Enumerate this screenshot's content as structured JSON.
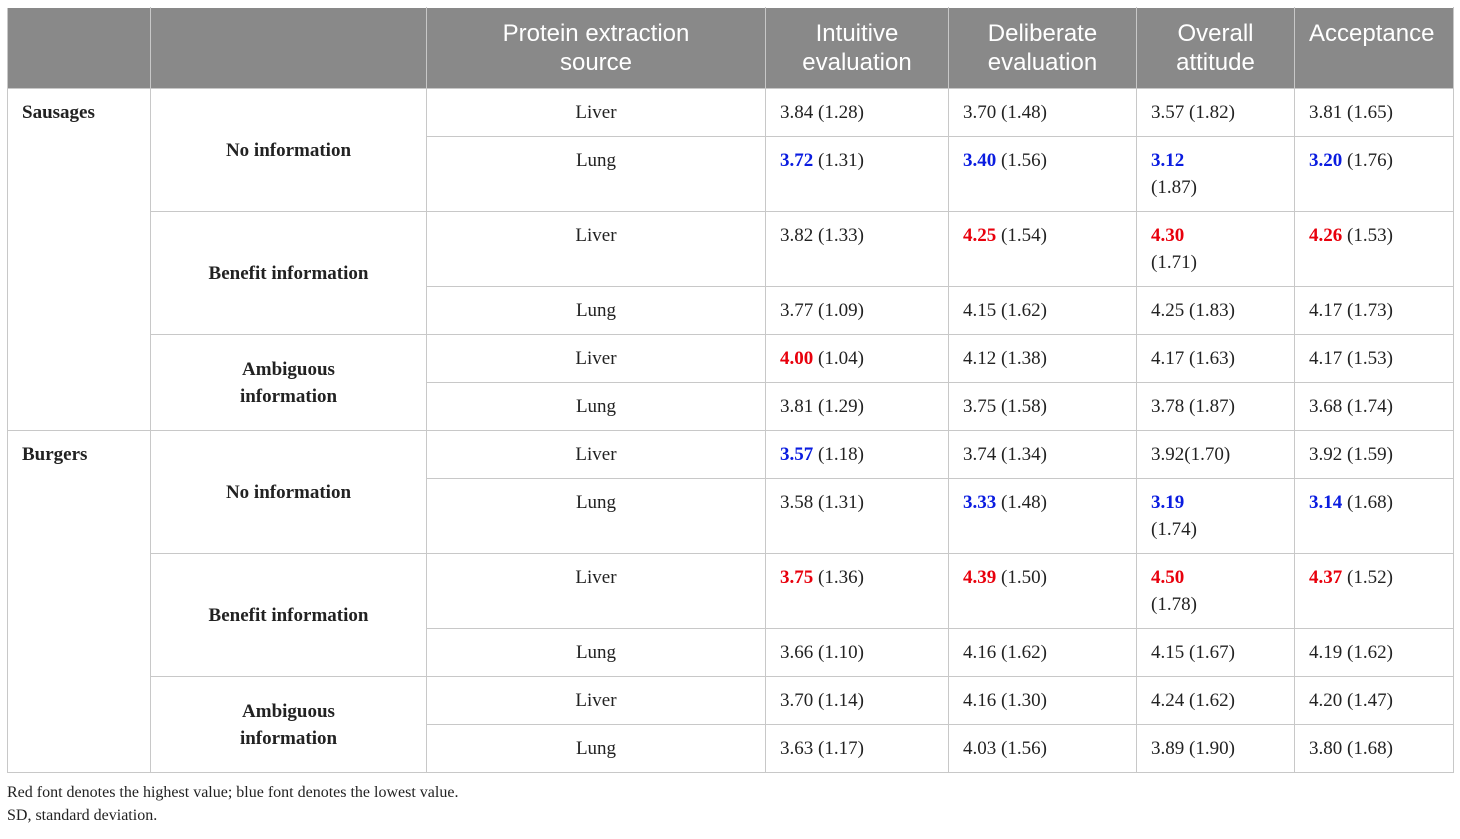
{
  "headers": [
    "",
    "",
    "Protein extraction source",
    "Intuitive evaluation",
    "Deliberate evaluation",
    "Overall attitude",
    "Acceptance"
  ],
  "header_lines": [
    [],
    [],
    [
      "Protein extraction",
      "source"
    ],
    [
      "Intuitive",
      "evaluation"
    ],
    [
      "Deliberate",
      "evaluation"
    ],
    [
      "Overall",
      "attitude"
    ],
    [
      "Acceptance"
    ]
  ],
  "groups": [
    {
      "product": "Sausages",
      "conditions": [
        {
          "info": [
            "No information"
          ],
          "rows": [
            {
              "source": "Liver",
              "cells": [
                {
                  "mean": "3.84",
                  "sd": "(1.28)",
                  "mark": "",
                  "sep": " "
                },
                {
                  "mean": "3.70",
                  "sd": "(1.48)",
                  "mark": "",
                  "sep": " "
                },
                {
                  "mean": "3.57",
                  "sd": "(1.82)",
                  "mark": "",
                  "sep": " "
                },
                {
                  "mean": "3.81",
                  "sd": "(1.65)",
                  "mark": "",
                  "sep": " "
                }
              ]
            },
            {
              "source": "Lung",
              "cells": [
                {
                  "mean": "3.72",
                  "sd": "(1.31)",
                  "mark": "lo",
                  "sep": " "
                },
                {
                  "mean": "3.40",
                  "sd": "(1.56)",
                  "mark": "lo",
                  "sep": " "
                },
                {
                  "mean": "3.12",
                  "sd": "(1.87)",
                  "mark": "lo",
                  "sep": "br"
                },
                {
                  "mean": "3.20",
                  "sd": "(1.76)",
                  "mark": "lo",
                  "sep": " "
                }
              ]
            }
          ]
        },
        {
          "info": [
            "Benefit information"
          ],
          "rows": [
            {
              "source": "Liver",
              "cells": [
                {
                  "mean": "3.82",
                  "sd": "(1.33)",
                  "mark": "",
                  "sep": " "
                },
                {
                  "mean": "4.25",
                  "sd": "(1.54)",
                  "mark": "hi",
                  "sep": " "
                },
                {
                  "mean": "4.30",
                  "sd": "(1.71)",
                  "mark": "hi",
                  "sep": "br"
                },
                {
                  "mean": "4.26",
                  "sd": "(1.53)",
                  "mark": "hi",
                  "sep": " "
                }
              ]
            },
            {
              "source": "Lung",
              "cells": [
                {
                  "mean": "3.77",
                  "sd": "(1.09)",
                  "mark": "",
                  "sep": " "
                },
                {
                  "mean": "4.15",
                  "sd": "(1.62)",
                  "mark": "",
                  "sep": " "
                },
                {
                  "mean": "4.25",
                  "sd": "(1.83)",
                  "mark": "",
                  "sep": " "
                },
                {
                  "mean": "4.17",
                  "sd": "(1.73)",
                  "mark": "",
                  "sep": " "
                }
              ]
            }
          ]
        },
        {
          "info": [
            "Ambiguous",
            "information"
          ],
          "rows": [
            {
              "source": "Liver",
              "cells": [
                {
                  "mean": "4.00",
                  "sd": "(1.04)",
                  "mark": "hi",
                  "sep": " "
                },
                {
                  "mean": "4.12",
                  "sd": "(1.38)",
                  "mark": "",
                  "sep": " "
                },
                {
                  "mean": "4.17",
                  "sd": "(1.63)",
                  "mark": "",
                  "sep": " "
                },
                {
                  "mean": "4.17",
                  "sd": "(1.53)",
                  "mark": "",
                  "sep": " "
                }
              ]
            },
            {
              "source": "Lung",
              "cells": [
                {
                  "mean": "3.81",
                  "sd": "(1.29)",
                  "mark": "",
                  "sep": " "
                },
                {
                  "mean": "3.75",
                  "sd": "(1.58)",
                  "mark": "",
                  "sep": " "
                },
                {
                  "mean": "3.78",
                  "sd": "(1.87)",
                  "mark": "",
                  "sep": " "
                },
                {
                  "mean": "3.68",
                  "sd": "(1.74)",
                  "mark": "",
                  "sep": " "
                }
              ]
            }
          ]
        }
      ]
    },
    {
      "product": "Burgers",
      "conditions": [
        {
          "info": [
            "No information"
          ],
          "rows": [
            {
              "source": "Liver",
              "cells": [
                {
                  "mean": "3.57",
                  "sd": "(1.18)",
                  "mark": "lo",
                  "sep": " "
                },
                {
                  "mean": "3.74",
                  "sd": "(1.34)",
                  "mark": "",
                  "sep": " "
                },
                {
                  "mean": "3.92",
                  "sd": "(1.70)",
                  "mark": "",
                  "sep": ""
                },
                {
                  "mean": "3.92",
                  "sd": "(1.59)",
                  "mark": "",
                  "sep": " "
                }
              ]
            },
            {
              "source": "Lung",
              "cells": [
                {
                  "mean": "3.58",
                  "sd": "(1.31)",
                  "mark": "",
                  "sep": " "
                },
                {
                  "mean": "3.33",
                  "sd": "(1.48)",
                  "mark": "lo",
                  "sep": " "
                },
                {
                  "mean": "3.19",
                  "sd": "(1.74)",
                  "mark": "lo",
                  "sep": "br"
                },
                {
                  "mean": "3.14",
                  "sd": "(1.68)",
                  "mark": "lo",
                  "sep": " "
                }
              ]
            }
          ]
        },
        {
          "info": [
            "Benefit information"
          ],
          "rows": [
            {
              "source": "Liver",
              "cells": [
                {
                  "mean": "3.75",
                  "sd": "(1.36)",
                  "mark": "hi",
                  "sep": " "
                },
                {
                  "mean": "4.39",
                  "sd": "(1.50)",
                  "mark": "hi",
                  "sep": " "
                },
                {
                  "mean": "4.50",
                  "sd": "(1.78)",
                  "mark": "hi",
                  "sep": "br"
                },
                {
                  "mean": "4.37",
                  "sd": "(1.52)",
                  "mark": "hi",
                  "sep": " "
                }
              ]
            },
            {
              "source": "Lung",
              "cells": [
                {
                  "mean": "3.66",
                  "sd": "(1.10)",
                  "mark": "",
                  "sep": " "
                },
                {
                  "mean": "4.16",
                  "sd": "(1.62)",
                  "mark": "",
                  "sep": " "
                },
                {
                  "mean": "4.15",
                  "sd": "(1.67)",
                  "mark": "",
                  "sep": " "
                },
                {
                  "mean": "4.19",
                  "sd": "(1.62)",
                  "mark": "",
                  "sep": " "
                }
              ]
            }
          ]
        },
        {
          "info": [
            "Ambiguous",
            "information"
          ],
          "rows": [
            {
              "source": "Liver",
              "cells": [
                {
                  "mean": "3.70",
                  "sd": "(1.14)",
                  "mark": "",
                  "sep": " "
                },
                {
                  "mean": "4.16",
                  "sd": "(1.30)",
                  "mark": "",
                  "sep": " "
                },
                {
                  "mean": "4.24",
                  "sd": "(1.62)",
                  "mark": "",
                  "sep": " "
                },
                {
                  "mean": "4.20",
                  "sd": "(1.47)",
                  "mark": "",
                  "sep": " "
                }
              ]
            },
            {
              "source": "Lung",
              "cells": [
                {
                  "mean": "3.63",
                  "sd": "(1.17)",
                  "mark": "",
                  "sep": " "
                },
                {
                  "mean": "4.03",
                  "sd": "(1.56)",
                  "mark": "",
                  "sep": " "
                },
                {
                  "mean": "3.89",
                  "sd": "(1.90)",
                  "mark": "",
                  "sep": " "
                },
                {
                  "mean": "3.80",
                  "sd": "(1.68)",
                  "mark": "",
                  "sep": " "
                }
              ]
            }
          ]
        }
      ]
    }
  ],
  "footnotes": [
    "Red font denotes the highest value; blue font denotes the lowest value.",
    "SD, standard deviation."
  ],
  "colors": {
    "header_bg": "#898989",
    "highest": "#e8000c",
    "lowest": "#0a1ce0",
    "border": "#c8c8c8"
  }
}
